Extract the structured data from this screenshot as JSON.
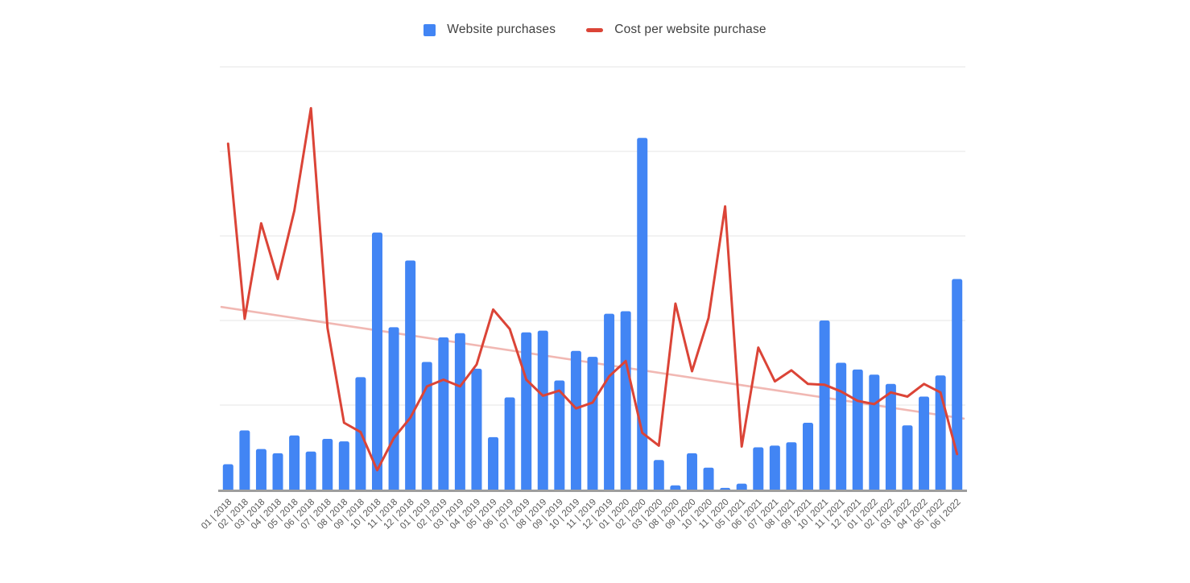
{
  "page": {
    "background": "#ffffff"
  },
  "legend": {
    "position": "top-center",
    "items": [
      {
        "label": "Website purchases",
        "color": "#4285f4",
        "shape": "square"
      },
      {
        "label": "Cost per website purchase",
        "color": "#db4437",
        "shape": "line"
      }
    ]
  },
  "axis": {
    "x_label_color": "#575757",
    "axis_line_color": "#9e9e9e",
    "gridline_color": "#e9e9e9",
    "y_axis_labels_visible": false
  },
  "chart_data": {
    "type": "bar",
    "subtype": "combo-bar-line",
    "title": "",
    "xlabel": "",
    "ylabel": "",
    "ylim": [
      0,
      500
    ],
    "grid": true,
    "gridline_count": 6,
    "legend_position": "top-center",
    "note": "No y-axis tick labels are visible; values estimated in gridline units (100 per gridline).",
    "categories": [
      "01 | 2018",
      "02 | 2018",
      "03 | 2018",
      "04 | 2018",
      "05 | 2018",
      "06 | 2018",
      "07 | 2018",
      "08 | 2018",
      "09 | 2018",
      "10 | 2018",
      "11 | 2018",
      "12 | 2018",
      "01 | 2019",
      "02 | 2019",
      "03 | 2019",
      "04 | 2019",
      "05 | 2019",
      "06 | 2019",
      "07 | 2019",
      "08 | 2019",
      "09 | 2019",
      "10 | 2019",
      "11 | 2019",
      "12 | 2019",
      "01 | 2020",
      "02 | 2020",
      "03 | 2020",
      "08 | 2020",
      "09 | 2020",
      "10 | 2020",
      "11 | 2020",
      "05 | 2021",
      "06 | 2021",
      "07 | 2021",
      "08 | 2021",
      "09 | 2021",
      "10 | 2021",
      "11 | 2021",
      "12 | 2021",
      "01 | 2022",
      "02 | 2022",
      "03 | 2022",
      "04 | 2022",
      "05 | 2022",
      "06 | 2022"
    ],
    "series": [
      {
        "name": "Website purchases",
        "type": "bar",
        "color": "#4285f4",
        "values": [
          30,
          70,
          48,
          43,
          64,
          45,
          60,
          57,
          133,
          304,
          192,
          271,
          151,
          180,
          185,
          143,
          62,
          109,
          186,
          188,
          129,
          164,
          157,
          208,
          211,
          416,
          35,
          5,
          43,
          26,
          2,
          7,
          50,
          52,
          56,
          79,
          200,
          150,
          142,
          136,
          125,
          76,
          110,
          135,
          249
        ]
      },
      {
        "name": "Cost per website purchase",
        "type": "line",
        "color": "#db4437",
        "values": [
          409,
          202,
          315,
          249,
          330,
          451,
          191,
          79,
          68,
          23,
          61,
          85,
          122,
          130,
          122,
          148,
          213,
          190,
          130,
          111,
          117,
          96,
          103,
          134,
          152,
          67,
          52,
          220,
          140,
          203,
          335,
          51,
          168,
          128,
          141,
          125,
          124,
          116,
          105,
          101,
          115,
          110,
          125,
          115,
          42
        ]
      },
      {
        "name": "Cost per website purchase trendline",
        "type": "trendline",
        "color": "rgba(219,68,55,0.38)",
        "endpoints": [
          216,
          84
        ]
      }
    ]
  }
}
